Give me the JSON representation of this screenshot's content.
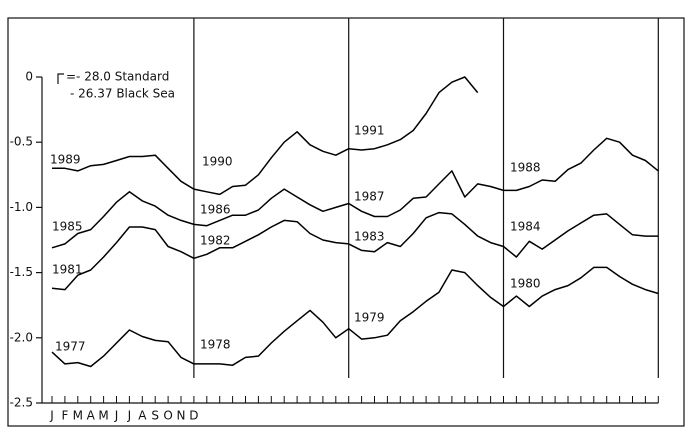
{
  "chart_data": {
    "type": "line",
    "annotations": [
      "=- 28.0 Standard",
      "- 26.37 Black Sea",
      "1989",
      "1990",
      "1991",
      "1988",
      "1985",
      "1986",
      "1987",
      "1984",
      "1981",
      "1982",
      "1983",
      "1980",
      "1977",
      "1978",
      "1979"
    ],
    "categories": [
      "J",
      "F",
      "M",
      "A",
      "M",
      "J",
      "J",
      "A",
      "S",
      "O",
      "N",
      "D",
      null,
      null,
      null,
      null,
      null,
      null,
      null,
      null,
      null,
      null,
      null,
      null,
      null,
      null,
      null,
      null,
      null,
      null,
      null,
      null,
      null,
      null,
      null,
      null,
      null,
      null,
      null,
      null,
      null,
      null,
      null,
      null,
      null,
      null,
      null,
      null
    ],
    "ylim": [
      -2.5,
      0
    ],
    "yticks": [
      0,
      -0.5,
      {
        "value": -1,
        "label": "-1.0"
      },
      -1.5,
      {
        "value": -2,
        "label": "-2.0"
      },
      -2.5
    ],
    "series": [
      {
        "color": "#000000",
        "values": [
          -0.7,
          -0.7,
          -0.72,
          -0.68,
          -0.67,
          -0.64,
          -0.61,
          -0.61,
          -0.6,
          -0.7,
          -0.8,
          -0.86,
          -0.88,
          -0.9,
          -0.84,
          -0.83,
          -0.75,
          -0.62,
          -0.5,
          -0.42,
          -0.52,
          -0.57,
          -0.6,
          -0.55,
          -0.56,
          -0.55,
          -0.52,
          -0.48,
          -0.41,
          -0.28,
          -0.12,
          -0.04,
          0,
          -0.12,
          null,
          null,
          null,
          null,
          null,
          null,
          null,
          null,
          null,
          null,
          null,
          null,
          null,
          null
        ]
      },
      {
        "color": "#000000",
        "values": [
          -1.31,
          -1.28,
          -1.2,
          -1.17,
          -1.07,
          -0.96,
          -0.88,
          -0.95,
          -0.99,
          -1.06,
          -1.1,
          -1.13,
          -1.14,
          -1.1,
          -1.06,
          -1.06,
          -1.02,
          -0.93,
          -0.86,
          -0.92,
          -0.98,
          -1.03,
          -1.0,
          -0.97,
          -1.03,
          -1.07,
          -1.07,
          -1.02,
          -0.93,
          -0.92,
          -0.82,
          -0.72,
          -0.92,
          -0.82,
          -0.84,
          -0.87,
          -0.87,
          -0.84,
          -0.79,
          -0.8,
          -0.71,
          -0.66,
          -0.56,
          -0.47,
          -0.5,
          -0.6,
          -0.64,
          -0.72
        ]
      },
      {
        "color": "#000000",
        "values": [
          -1.62,
          -1.63,
          -1.52,
          -1.48,
          -1.38,
          -1.27,
          -1.15,
          -1.15,
          -1.17,
          -1.3,
          -1.34,
          -1.39,
          -1.36,
          -1.31,
          -1.31,
          -1.26,
          -1.21,
          -1.15,
          -1.1,
          -1.11,
          -1.2,
          -1.25,
          -1.27,
          -1.28,
          -1.33,
          -1.34,
          -1.27,
          -1.3,
          -1.2,
          -1.08,
          -1.04,
          -1.05,
          -1.13,
          -1.22,
          -1.27,
          -1.3,
          -1.38,
          -1.26,
          -1.32,
          -1.25,
          -1.18,
          -1.12,
          -1.06,
          -1.05,
          -1.13,
          -1.21,
          -1.22,
          -1.22
        ]
      },
      {
        "color": "#000000",
        "values": [
          -2.11,
          -2.2,
          -2.19,
          -2.22,
          -2.14,
          -2.04,
          -1.94,
          -1.99,
          -2.02,
          -2.03,
          -2.15,
          -2.2,
          -2.2,
          -2.2,
          -2.21,
          -2.15,
          -2.14,
          -2.04,
          -1.95,
          -1.87,
          -1.79,
          -1.88,
          -2.0,
          -1.93,
          -2.01,
          -2.0,
          -1.98,
          -1.87,
          -1.8,
          -1.72,
          -1.65,
          -1.48,
          -1.5,
          -1.6,
          -1.69,
          -1.76,
          -1.68,
          -1.76,
          -1.68,
          -1.63,
          -1.6,
          -1.54,
          -1.46,
          -1.46,
          -1.53,
          -1.59,
          -1.63,
          -1.66
        ]
      }
    ]
  }
}
